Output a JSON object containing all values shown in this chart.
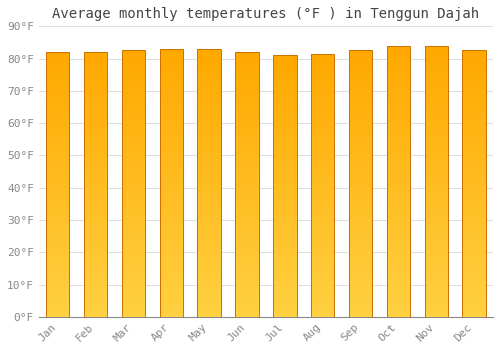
{
  "title": "Average monthly temperatures (°F ) in Tenggun Dajah",
  "months": [
    "Jan",
    "Feb",
    "Mar",
    "Apr",
    "May",
    "Jun",
    "Jul",
    "Aug",
    "Sep",
    "Oct",
    "Nov",
    "Dec"
  ],
  "values": [
    82,
    82,
    82.5,
    83,
    83,
    82,
    81,
    81.5,
    82.5,
    84,
    84,
    82.5
  ],
  "bar_color_bottom": "#FFD040",
  "bar_color_top": "#FFA800",
  "bar_edge_color": "#CC7000",
  "ylim": [
    0,
    90
  ],
  "yticks": [
    0,
    10,
    20,
    30,
    40,
    50,
    60,
    70,
    80,
    90
  ],
  "ytick_labels": [
    "0°F",
    "10°F",
    "20°F",
    "30°F",
    "40°F",
    "50°F",
    "60°F",
    "70°F",
    "80°F",
    "90°F"
  ],
  "background_color": "#ffffff",
  "grid_color": "#dddddd",
  "title_fontsize": 10,
  "tick_fontsize": 8,
  "font_family": "monospace",
  "bar_width": 0.62
}
